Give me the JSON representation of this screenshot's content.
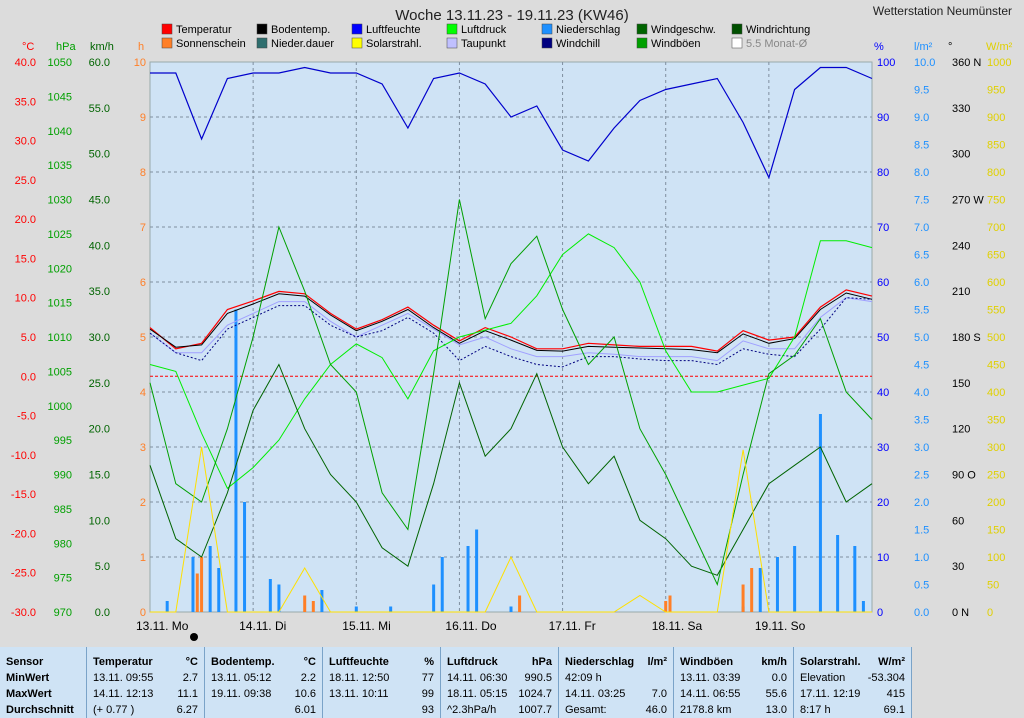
{
  "header": {
    "title": "Woche 13.11.23 - 19.11.23 (KW46)",
    "station": "Wetterstation Neumünster"
  },
  "legend": [
    {
      "label": "Temperatur",
      "color": "#ff0000"
    },
    {
      "label": "Sonnenschein",
      "color": "#ff7f27"
    },
    {
      "label": "Bodentemp.",
      "color": "#000000"
    },
    {
      "label": "Nieder.dauer",
      "color": "#2f6f6f"
    },
    {
      "label": "Luftfeuchte",
      "color": "#0000ff"
    },
    {
      "label": "Solarstrahl.",
      "color": "#ffff00"
    },
    {
      "label": "Luftdruck",
      "color": "#00ff00"
    },
    {
      "label": "Taupunkt",
      "color": "#c0c0ff"
    },
    {
      "label": "Niederschlag",
      "color": "#1e90ff"
    },
    {
      "label": "Windchill",
      "color": "#000080"
    },
    {
      "label": "Windgeschw.",
      "color": "#006400"
    },
    {
      "label": "Windböen",
      "color": "#00a000"
    },
    {
      "label": "Windrichtung",
      "color": "#005000"
    },
    {
      "label": "5.5 Monat-Ø",
      "color": "#ffffff"
    }
  ],
  "axes": {
    "temp_unit": "°C",
    "press_unit": "hPa",
    "wind_unit": "km/h",
    "hours_unit": "h",
    "hum_unit": "%",
    "rain_unit": "l/m²",
    "dir_unit": "°",
    "solar_unit": "W/m²",
    "temp_ticks": [
      "40.0",
      "35.0",
      "30.0",
      "25.0",
      "20.0",
      "15.0",
      "10.0",
      "5.0",
      "0.0",
      "-5.0",
      "-10.0",
      "-15.0",
      "-20.0",
      "-25.0",
      "-30.0"
    ],
    "press_ticks": [
      "1050",
      "1045",
      "1040",
      "1035",
      "1030",
      "1025",
      "1020",
      "1015",
      "1010",
      "1005",
      "1000",
      "995",
      "990",
      "985",
      "980",
      "975",
      "970"
    ],
    "wind_ticks": [
      "60.0",
      "55.0",
      "50.0",
      "45.0",
      "40.0",
      "35.0",
      "30.0",
      "25.0",
      "20.0",
      "15.0",
      "10.0",
      "5.0",
      "0.0"
    ],
    "hours_ticks": [
      "10",
      "9",
      "8",
      "7",
      "6",
      "5",
      "4",
      "3",
      "2",
      "1",
      "0"
    ],
    "hum_ticks": [
      "100",
      "90",
      "80",
      "70",
      "60",
      "50",
      "40",
      "30",
      "20",
      "10",
      "0"
    ],
    "rain_ticks": [
      "10.0",
      "9.5",
      "9.0",
      "8.5",
      "8.0",
      "7.5",
      "7.0",
      "6.5",
      "6.0",
      "5.5",
      "5.0",
      "4.5",
      "4.0",
      "3.5",
      "3.0",
      "2.5",
      "2.0",
      "1.5",
      "1.0",
      "0.5",
      "0.0"
    ],
    "dir_ticks": [
      "360 N",
      "330",
      "300",
      "270 W",
      "240",
      "210",
      "180 S",
      "150",
      "120",
      "90 O",
      "60",
      "30",
      "0 N"
    ],
    "solar_ticks": [
      "1000",
      "950",
      "900",
      "850",
      "800",
      "750",
      "700",
      "650",
      "600",
      "550",
      "500",
      "450",
      "400",
      "350",
      "300",
      "250",
      "200",
      "150",
      "100",
      "50",
      "0"
    ]
  },
  "days": [
    "13.11. Mo",
    "14.11. Di",
    "15.11. Mi",
    "16.11. Do",
    "17.11. Fr",
    "18.11. Sa",
    "19.11. So"
  ],
  "chart_data": {
    "type": "line",
    "title": "Woche 13.11.23 - 19.11.23 (KW46)",
    "x": [
      0,
      6,
      12,
      18,
      24,
      30,
      36,
      42,
      48,
      54,
      60,
      66,
      72,
      78,
      84,
      90,
      96,
      102,
      108,
      114,
      120,
      126,
      132,
      138,
      144,
      150,
      156,
      162,
      168
    ],
    "x_unit": "hours since 13.11. 00:00",
    "series": [
      {
        "name": "Temperatur",
        "unit": "°C",
        "values": [
          6.2,
          3.5,
          4.2,
          8.5,
          9.6,
          10.8,
          10.5,
          8.0,
          6.0,
          7.2,
          8.8,
          6.5,
          4.5,
          6.2,
          5.0,
          3.5,
          3.5,
          4.2,
          4.0,
          3.8,
          3.8,
          3.8,
          3.2,
          5.8,
          4.6,
          5.0,
          8.8,
          11.0,
          10.2
        ]
      },
      {
        "name": "Bodentemp.",
        "unit": "°C",
        "values": [
          6.0,
          3.7,
          4.0,
          8.0,
          9.2,
          10.5,
          10.2,
          7.8,
          5.8,
          7.0,
          8.5,
          6.2,
          4.2,
          5.8,
          4.6,
          3.3,
          3.2,
          3.8,
          3.7,
          3.6,
          3.5,
          3.4,
          3.0,
          5.4,
          4.2,
          4.8,
          8.5,
          10.6,
          9.8
        ]
      },
      {
        "name": "Taupunkt",
        "unit": "°C",
        "values": [
          5.5,
          3.0,
          3.0,
          6.5,
          8.0,
          9.5,
          9.5,
          7.0,
          5.0,
          6.5,
          8.0,
          6.0,
          4.0,
          5.0,
          3.5,
          2.5,
          2.5,
          3.0,
          2.8,
          2.5,
          2.5,
          2.5,
          2.0,
          4.5,
          3.5,
          3.5,
          7.5,
          10.0,
          9.5
        ]
      },
      {
        "name": "Windchill",
        "unit": "°C",
        "values": [
          5.5,
          3.0,
          2.0,
          6.0,
          7.5,
          9.0,
          9.0,
          6.5,
          5.0,
          5.8,
          7.5,
          5.5,
          2.0,
          3.8,
          2.5,
          1.5,
          1.2,
          2.5,
          2.5,
          2.2,
          2.0,
          2.0,
          1.5,
          3.5,
          2.8,
          2.5,
          6.0,
          10.0,
          9.8
        ]
      },
      {
        "name": "Luftfeuchte",
        "unit": "%",
        "values": [
          98,
          98,
          86,
          97,
          98,
          98,
          99,
          98,
          98,
          96,
          88,
          97,
          98,
          96,
          90,
          92,
          84,
          82,
          88,
          93,
          95,
          96,
          97,
          89,
          79,
          95,
          99,
          99,
          97
        ]
      },
      {
        "name": "Luftdruck",
        "unit": "hPa",
        "values": [
          1006,
          1005,
          996,
          988,
          991,
          995,
          1001,
          1006,
          1009,
          1007,
          1001,
          1008,
          1010,
          1011,
          1012,
          1016,
          1022,
          1025,
          1023,
          1018,
          1008,
          1002,
          1002,
          1003,
          1004,
          1010,
          1024,
          1024,
          1023
        ]
      },
      {
        "name": "Windgeschw.",
        "unit": "km/h",
        "values": [
          16,
          8,
          6,
          13,
          22,
          27,
          20,
          15,
          12,
          7,
          5,
          14,
          25,
          17,
          20,
          26,
          18,
          14,
          17,
          10,
          8,
          5,
          4,
          9,
          14,
          16,
          18,
          12,
          14
        ]
      },
      {
        "name": "Windböen",
        "unit": "km/h",
        "values": [
          25,
          14,
          12,
          20,
          30,
          42,
          35,
          27,
          24,
          13,
          9,
          26,
          45,
          32,
          38,
          41,
          33,
          27,
          30,
          20,
          15,
          9,
          3,
          15,
          26,
          28,
          32,
          24,
          21
        ]
      },
      {
        "name": "Solarstrahl.",
        "unit": "W/m²",
        "values": [
          0,
          0,
          300,
          0,
          0,
          0,
          80,
          0,
          0,
          0,
          0,
          0,
          0,
          0,
          100,
          0,
          0,
          0,
          0,
          30,
          0,
          0,
          0,
          295,
          0,
          0,
          0,
          0,
          0
        ]
      }
    ],
    "bars": [
      {
        "name": "Niederschlag",
        "unit": "l/m²",
        "x": [
          4,
          10,
          14,
          16,
          20,
          22,
          28,
          30,
          40,
          48,
          56,
          66,
          68,
          74,
          76,
          84,
          138,
          142,
          146,
          150,
          156,
          160,
          164,
          166
        ],
        "values": [
          0.2,
          1.0,
          1.2,
          0.8,
          5.5,
          2.0,
          0.6,
          0.5,
          0.4,
          0.1,
          0.1,
          0.5,
          1.0,
          1.2,
          1.5,
          0.1,
          0.1,
          0.8,
          1.0,
          1.2,
          3.6,
          1.4,
          1.2,
          0.2
        ]
      },
      {
        "name": "Sonnenschein",
        "unit": "h",
        "x": [
          11,
          12,
          36,
          38,
          86,
          120,
          121,
          138,
          140
        ],
        "values": [
          0.7,
          1.0,
          0.3,
          0.2,
          0.3,
          0.2,
          0.3,
          0.5,
          0.8
        ]
      }
    ],
    "ylim_temp": [
      -30,
      40
    ],
    "ylim_press": [
      970,
      1050
    ],
    "ylim_wind": [
      0,
      60
    ],
    "ylim_hum": [
      0,
      100
    ],
    "ylim_rain": [
      0,
      10
    ],
    "ylim_solar": [
      0,
      1000
    ],
    "grid": true
  },
  "table": {
    "row_labels": [
      "Sensor",
      "MinWert",
      "MaxWert",
      "Durchschnitt"
    ],
    "columns": [
      {
        "title": "Temperatur",
        "unit": "°C",
        "rows": [
          [
            "13.11.  09:55",
            "2.7"
          ],
          [
            "14.11.  12:13",
            "11.1"
          ],
          [
            "(+ 0.77 )",
            "6.27"
          ]
        ]
      },
      {
        "title": "Bodentemp.",
        "unit": "°C",
        "rows": [
          [
            "13.11.  05:12",
            "2.2"
          ],
          [
            "19.11.  09:38",
            "10.6"
          ],
          [
            "",
            "6.01"
          ]
        ]
      },
      {
        "title": "Luftfeuchte",
        "unit": "%",
        "rows": [
          [
            "18.11.  12:50",
            "77"
          ],
          [
            "13.11.  10:11",
            "99"
          ],
          [
            "",
            "93"
          ]
        ]
      },
      {
        "title": "Luftdruck",
        "unit": "hPa",
        "rows": [
          [
            "14.11.  06:30",
            "990.5"
          ],
          [
            "18.11.  05:15",
            "1024.7"
          ],
          [
            "^2.3hPa/h",
            "1007.7"
          ]
        ]
      },
      {
        "title": "Niederschlag",
        "unit": "l/m²",
        "rows": [
          [
            "42:09 h",
            ""
          ],
          [
            "14.11.  03:25",
            "7.0"
          ],
          [
            "Gesamt:",
            "46.0"
          ]
        ]
      },
      {
        "title": "Windböen",
        "unit": "km/h",
        "rows": [
          [
            "13.11.  03:39",
            "0.0"
          ],
          [
            "14.11.  06:55",
            "55.6"
          ],
          [
            "2178.8 km",
            "13.0"
          ]
        ]
      },
      {
        "title": "Solarstrahl.",
        "unit": "W/m²",
        "rows": [
          [
            "Elevation",
            "-53.304"
          ],
          [
            "17.11.  12:19",
            "415"
          ],
          [
            "8:17 h",
            "69.1"
          ]
        ]
      }
    ]
  }
}
